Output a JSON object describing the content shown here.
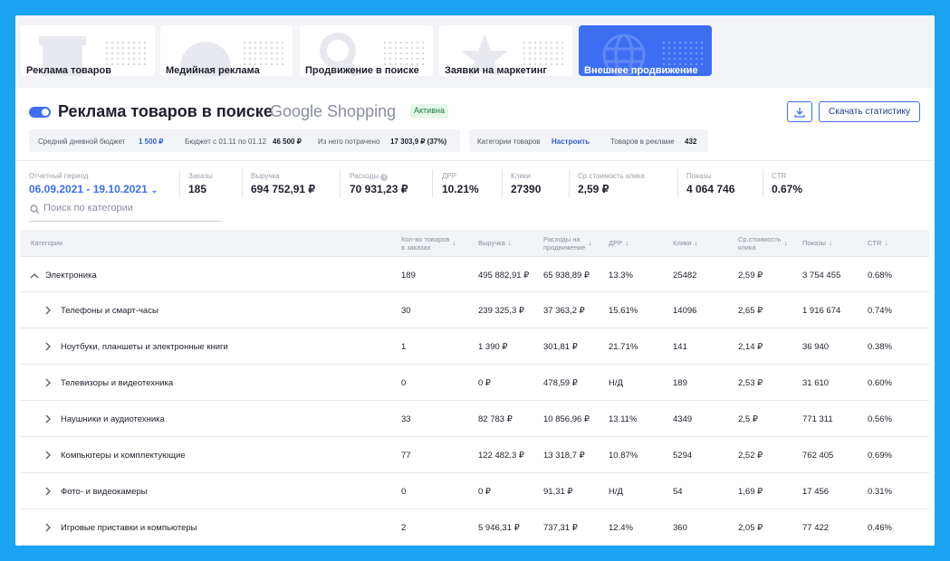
{
  "tabs": [
    {
      "label": "Реклама товаров",
      "icon": "box-icon"
    },
    {
      "label": "Медийная реклама",
      "icon": "media-icon"
    },
    {
      "label": "Продвижение в поиске",
      "icon": "search-icon"
    },
    {
      "label": "Заявки на маркетинг",
      "icon": "star-icon"
    },
    {
      "label": "Внешнее продвижение",
      "icon": "globe-icon"
    }
  ],
  "header": {
    "title": "Реклама товаров в поиске",
    "subtitle": "Google Shopping",
    "status": "Активна",
    "download_label": "Скачать статистику"
  },
  "budget": {
    "daily_label": "Средний дневной бюджет",
    "daily_value": "1 500 ₽",
    "period_label": "Бюджет с 01.11 по 01.12",
    "period_value": "46 500 ₽",
    "spent_label": "Из него потрачено",
    "spent_value": "17 303,9 ₽ (37%)"
  },
  "categories_panel": {
    "label": "Категории товаров",
    "action": "Настроить",
    "products_label": "Товаров в рекламе",
    "products_value": "432"
  },
  "metrics": {
    "period_label": "Отчетный период",
    "period_value": "06.09.2021 - 19.10.2021",
    "orders_label": "Заказы",
    "orders_value": "185",
    "revenue_label": "Выручка",
    "revenue_value": "694 752,91 ₽",
    "expenses_label": "Расходы",
    "expenses_value": "70 931,23 ₽",
    "drr_label": "ДРР",
    "drr_value": "10.21%",
    "clicks_label": "Клики",
    "clicks_value": "27390",
    "cpc_label": "Ср.стоимость клика",
    "cpc_value": "2,59 ₽",
    "impressions_label": "Показы",
    "impressions_value": "4 064 746",
    "ctr_label": "CTR",
    "ctr_value": "0.67%"
  },
  "search": {
    "placeholder": "Поиск по категории"
  },
  "table": {
    "columns": {
      "category": "Категории",
      "orders_line1": "Кол-во товаров",
      "orders_line2": "в заказах",
      "revenue": "Выручка",
      "spend_line1": "Расходы на",
      "spend_line2": "продвижение",
      "drr": "ДРР",
      "clicks": "Клики",
      "cpc_line1": "Ср.стоимость",
      "cpc_line2": "клика",
      "impressions": "Показы",
      "ctr": "CTR"
    },
    "rows": [
      {
        "name": "Электроника",
        "orders": "189",
        "revenue": "495 882,91 ₽",
        "spend": "65 938,89 ₽",
        "drr": "13.3%",
        "clicks": "25482",
        "cpc": "2,59 ₽",
        "impressions": "3 754 455",
        "ctr": "0.68%"
      },
      {
        "name": "Телефоны и смарт-часы",
        "orders": "30",
        "revenue": "239 325,3 ₽",
        "spend": "37 363,2 ₽",
        "drr": "15.61%",
        "clicks": "14096",
        "cpc": "2,65 ₽",
        "impressions": "1 916 674",
        "ctr": "0.74%"
      },
      {
        "name": "Ноутбуки, планшеты и электронные книги",
        "orders": "1",
        "revenue": "1 390 ₽",
        "spend": "301,81 ₽",
        "drr": "21.71%",
        "clicks": "141",
        "cpc": "2,14 ₽",
        "impressions": "36 940",
        "ctr": "0.38%"
      },
      {
        "name": "Телевизоры и видеотехника",
        "orders": "0",
        "revenue": "0 ₽",
        "spend": "478,59 ₽",
        "drr": "Н/Д",
        "clicks": "189",
        "cpc": "2,53 ₽",
        "impressions": "31 610",
        "ctr": "0.60%"
      },
      {
        "name": "Наушники и аудиотехника",
        "orders": "33",
        "revenue": "82 783 ₽",
        "spend": "10 856,96 ₽",
        "drr": "13.11%",
        "clicks": "4349",
        "cpc": "2,5 ₽",
        "impressions": "771 311",
        "ctr": "0.56%"
      },
      {
        "name": "Компьютеры и комплектующие",
        "orders": "77",
        "revenue": "122 482,3 ₽",
        "spend": "13 318,7 ₽",
        "drr": "10.87%",
        "clicks": "5294",
        "cpc": "2,52 ₽",
        "impressions": "762 405",
        "ctr": "0.69%"
      },
      {
        "name": "Фото- и видеокамеры",
        "orders": "0",
        "revenue": "0 ₽",
        "spend": "91,31 ₽",
        "drr": "Н/Д",
        "clicks": "54",
        "cpc": "1,69 ₽",
        "impressions": "17 456",
        "ctr": "0.31%"
      },
      {
        "name": "Игровые приставки и компьютеры",
        "orders": "2",
        "revenue": "5 946,31 ₽",
        "spend": "737,31 ₽",
        "drr": "12.4%",
        "clicks": "360",
        "cpc": "2,05 ₽",
        "impressions": "77 422",
        "ctr": "0.46%"
      }
    ]
  },
  "colors": {
    "accent": "#3d6ef2",
    "frame": "#1aa3f0",
    "badge_bg": "#e5f6ea"
  }
}
